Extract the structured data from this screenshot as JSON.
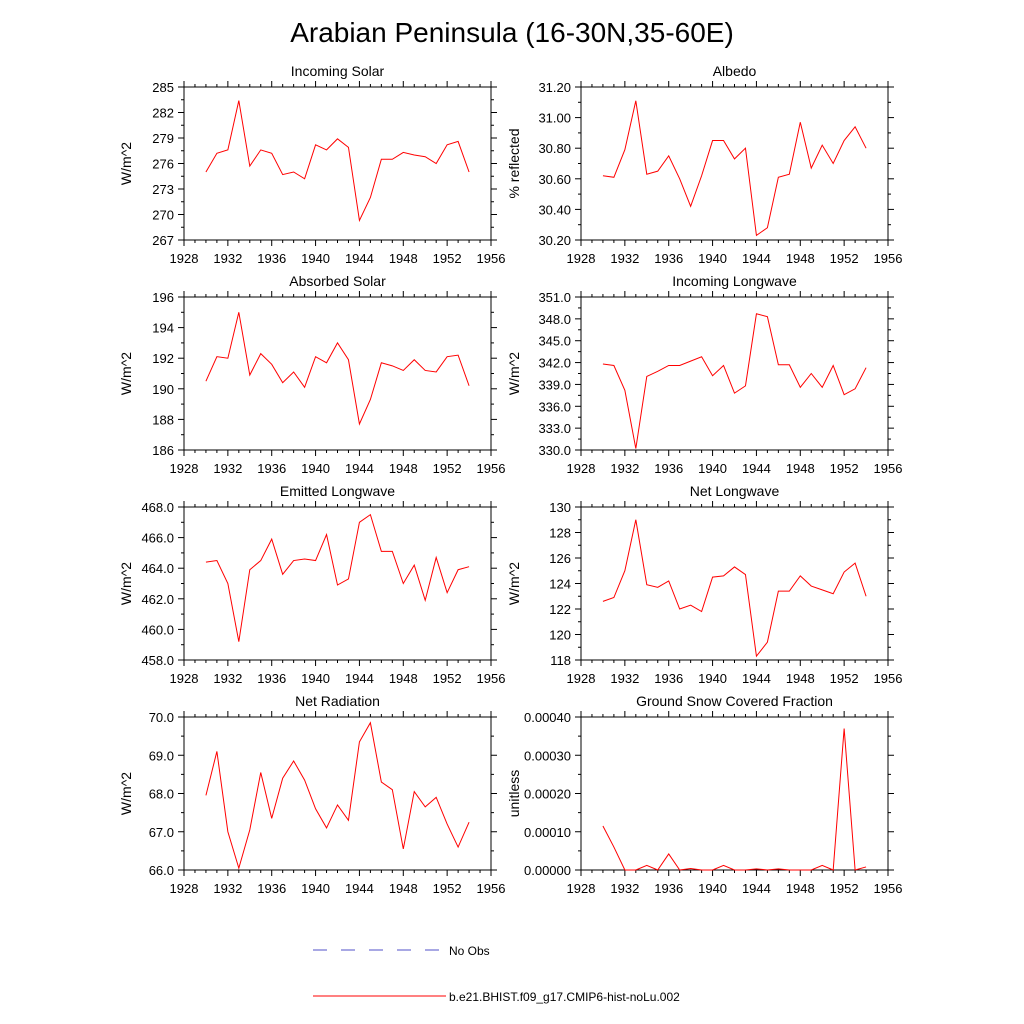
{
  "figure_title": "Arabian Peninsula (16-30N,35-60E)",
  "legend": [
    {
      "label": "No Obs",
      "color": "#5050c8",
      "style": "dashed"
    },
    {
      "label": "b.e21.BHIST.f09_g17.CMIP6-hist-noLu.002",
      "color": "#ff0000",
      "style": "solid"
    }
  ],
  "chart_data": [
    {
      "type": "line",
      "title": "Incoming Solar",
      "ylabel": "W/m^2",
      "xlim": [
        1928,
        1956
      ],
      "xticks": [
        1928,
        1932,
        1936,
        1940,
        1944,
        1948,
        1952,
        1956
      ],
      "ylim": [
        267,
        285
      ],
      "yticks": [
        267,
        270,
        273,
        276,
        279,
        282,
        285
      ],
      "ytick_labels": [
        "267",
        "270",
        "273",
        "276",
        "279",
        "282",
        "285"
      ],
      "series": [
        {
          "name": "b.e21.BHIST.f09_g17.CMIP6-hist-noLu.002",
          "color": "#ff0000",
          "x": [
            1930,
            1931,
            1932,
            1933,
            1934,
            1935,
            1936,
            1937,
            1938,
            1939,
            1940,
            1941,
            1942,
            1943,
            1944,
            1945,
            1946,
            1947,
            1948,
            1949,
            1950,
            1951,
            1952,
            1953,
            1954
          ],
          "y": [
            275.0,
            277.2,
            277.6,
            283.4,
            275.7,
            277.6,
            277.2,
            274.7,
            275.0,
            274.2,
            278.2,
            277.6,
            278.9,
            277.9,
            269.3,
            272.0,
            276.5,
            276.5,
            277.3,
            277.0,
            276.8,
            276.0,
            278.2,
            278.6,
            275.0
          ]
        }
      ]
    },
    {
      "type": "line",
      "title": "Albedo",
      "ylabel": "% reflected",
      "xlim": [
        1928,
        1956
      ],
      "xticks": [
        1928,
        1932,
        1936,
        1940,
        1944,
        1948,
        1952,
        1956
      ],
      "ylim": [
        30.2,
        31.2
      ],
      "yticks": [
        30.2,
        30.4,
        30.6,
        30.8,
        31.0,
        31.2
      ],
      "ytick_labels": [
        "30.20",
        "30.40",
        "30.60",
        "30.80",
        "31.00",
        "31.20"
      ],
      "series": [
        {
          "name": "b.e21.BHIST.f09_g17.CMIP6-hist-noLu.002",
          "color": "#ff0000",
          "x": [
            1930,
            1931,
            1932,
            1933,
            1934,
            1935,
            1936,
            1937,
            1938,
            1939,
            1940,
            1941,
            1942,
            1943,
            1944,
            1945,
            1946,
            1947,
            1948,
            1949,
            1950,
            1951,
            1952,
            1953,
            1954
          ],
          "y": [
            30.62,
            30.61,
            30.79,
            31.11,
            30.63,
            30.65,
            30.75,
            30.6,
            30.42,
            30.62,
            30.85,
            30.85,
            30.73,
            30.8,
            30.23,
            30.28,
            30.61,
            30.63,
            30.97,
            30.67,
            30.82,
            30.7,
            30.85,
            30.94,
            30.8
          ]
        }
      ]
    },
    {
      "type": "line",
      "title": "Absorbed Solar",
      "ylabel": "W/m^2",
      "xlim": [
        1928,
        1956
      ],
      "xticks": [
        1928,
        1932,
        1936,
        1940,
        1944,
        1948,
        1952,
        1956
      ],
      "ylim": [
        186,
        196
      ],
      "yticks": [
        186,
        188,
        190,
        192,
        194,
        196
      ],
      "ytick_labels": [
        "186",
        "188",
        "190",
        "192",
        "194",
        "196"
      ],
      "series": [
        {
          "name": "b.e21.BHIST.f09_g17.CMIP6-hist-noLu.002",
          "color": "#ff0000",
          "x": [
            1930,
            1931,
            1932,
            1933,
            1934,
            1935,
            1936,
            1937,
            1938,
            1939,
            1940,
            1941,
            1942,
            1943,
            1944,
            1945,
            1946,
            1947,
            1948,
            1949,
            1950,
            1951,
            1952,
            1953,
            1954
          ],
          "y": [
            190.5,
            192.1,
            192.0,
            195.0,
            190.9,
            192.3,
            191.6,
            190.4,
            191.1,
            190.1,
            192.1,
            191.7,
            193.0,
            191.9,
            187.7,
            189.3,
            191.7,
            191.5,
            191.2,
            191.9,
            191.2,
            191.1,
            192.1,
            192.2,
            190.2
          ]
        }
      ]
    },
    {
      "type": "line",
      "title": "Incoming Longwave",
      "ylabel": "W/m^2",
      "xlim": [
        1928,
        1956
      ],
      "xticks": [
        1928,
        1932,
        1936,
        1940,
        1944,
        1948,
        1952,
        1956
      ],
      "ylim": [
        330,
        351
      ],
      "yticks": [
        330,
        333,
        336,
        339,
        342,
        345,
        348,
        351
      ],
      "ytick_labels": [
        "330.0",
        "333.0",
        "336.0",
        "339.0",
        "342.0",
        "345.0",
        "348.0",
        "351.0"
      ],
      "series": [
        {
          "name": "b.e21.BHIST.f09_g17.CMIP6-hist-noLu.002",
          "color": "#ff0000",
          "x": [
            1930,
            1931,
            1932,
            1933,
            1934,
            1935,
            1936,
            1937,
            1938,
            1939,
            1940,
            1941,
            1942,
            1943,
            1944,
            1945,
            1946,
            1947,
            1948,
            1949,
            1950,
            1951,
            1952,
            1953,
            1954
          ],
          "y": [
            341.8,
            341.6,
            338.2,
            330.2,
            340.1,
            340.8,
            341.6,
            341.6,
            342.2,
            342.8,
            340.2,
            341.6,
            337.8,
            338.8,
            348.7,
            348.3,
            341.7,
            341.7,
            338.6,
            340.5,
            338.6,
            341.6,
            337.6,
            338.4,
            341.3
          ]
        }
      ]
    },
    {
      "type": "line",
      "title": "Emitted Longwave",
      "ylabel": "W/m^2",
      "xlim": [
        1928,
        1956
      ],
      "xticks": [
        1928,
        1932,
        1936,
        1940,
        1944,
        1948,
        1952,
        1956
      ],
      "ylim": [
        458,
        468
      ],
      "yticks": [
        458,
        460,
        462,
        464,
        466,
        468
      ],
      "ytick_labels": [
        "458.0",
        "460.0",
        "462.0",
        "464.0",
        "466.0",
        "468.0"
      ],
      "series": [
        {
          "name": "b.e21.BHIST.f09_g17.CMIP6-hist-noLu.002",
          "color": "#ff0000",
          "x": [
            1930,
            1931,
            1932,
            1933,
            1934,
            1935,
            1936,
            1937,
            1938,
            1939,
            1940,
            1941,
            1942,
            1943,
            1944,
            1945,
            1946,
            1947,
            1948,
            1949,
            1950,
            1951,
            1952,
            1953,
            1954
          ],
          "y": [
            464.4,
            464.5,
            463.0,
            459.2,
            463.9,
            464.5,
            465.9,
            463.6,
            464.5,
            464.6,
            464.5,
            466.2,
            462.9,
            463.3,
            467.0,
            467.5,
            465.1,
            465.1,
            463.0,
            464.2,
            461.9,
            464.7,
            462.4,
            463.9,
            464.1
          ]
        }
      ]
    },
    {
      "type": "line",
      "title": "Net Longwave",
      "ylabel": "W/m^2",
      "xlim": [
        1928,
        1956
      ],
      "xticks": [
        1928,
        1932,
        1936,
        1940,
        1944,
        1948,
        1952,
        1956
      ],
      "ylim": [
        118,
        130
      ],
      "yticks": [
        118,
        120,
        122,
        124,
        126,
        128,
        130
      ],
      "ytick_labels": [
        "118",
        "120",
        "122",
        "124",
        "126",
        "128",
        "130"
      ],
      "series": [
        {
          "name": "b.e21.BHIST.f09_g17.CMIP6-hist-noLu.002",
          "color": "#ff0000",
          "x": [
            1930,
            1931,
            1932,
            1933,
            1934,
            1935,
            1936,
            1937,
            1938,
            1939,
            1940,
            1941,
            1942,
            1943,
            1944,
            1945,
            1946,
            1947,
            1948,
            1949,
            1950,
            1951,
            1952,
            1953,
            1954
          ],
          "y": [
            122.6,
            122.9,
            125.0,
            129.0,
            123.9,
            123.7,
            124.2,
            122.0,
            122.3,
            121.8,
            124.5,
            124.6,
            125.3,
            124.7,
            118.3,
            119.4,
            123.4,
            123.4,
            124.6,
            123.8,
            123.5,
            123.2,
            124.9,
            125.6,
            123.0
          ]
        }
      ]
    },
    {
      "type": "line",
      "title": "Net Radiation",
      "ylabel": "W/m^2",
      "xlim": [
        1928,
        1956
      ],
      "xticks": [
        1928,
        1932,
        1936,
        1940,
        1944,
        1948,
        1952,
        1956
      ],
      "ylim": [
        66,
        70
      ],
      "yticks": [
        66,
        67,
        68,
        69,
        70
      ],
      "ytick_labels": [
        "66.0",
        "67.0",
        "68.0",
        "69.0",
        "70.0"
      ],
      "series": [
        {
          "name": "b.e21.BHIST.f09_g17.CMIP6-hist-noLu.002",
          "color": "#ff0000",
          "x": [
            1930,
            1931,
            1932,
            1933,
            1934,
            1935,
            1936,
            1937,
            1938,
            1939,
            1940,
            1941,
            1942,
            1943,
            1944,
            1945,
            1946,
            1947,
            1948,
            1949,
            1950,
            1951,
            1952,
            1953,
            1954
          ],
          "y": [
            67.95,
            69.1,
            67.0,
            66.05,
            67.05,
            68.55,
            67.35,
            68.4,
            68.85,
            68.35,
            67.6,
            67.1,
            67.7,
            67.3,
            69.35,
            69.85,
            68.3,
            68.1,
            66.55,
            68.05,
            67.65,
            67.9,
            67.2,
            66.6,
            67.25
          ]
        }
      ]
    },
    {
      "type": "line",
      "title": "Ground Snow Covered Fraction",
      "ylabel": "unitless",
      "xlim": [
        1928,
        1956
      ],
      "xticks": [
        1928,
        1932,
        1936,
        1940,
        1944,
        1948,
        1952,
        1956
      ],
      "ylim": [
        0,
        0.0004
      ],
      "yticks": [
        0,
        0.0001,
        0.0002,
        0.0003,
        0.0004
      ],
      "ytick_labels": [
        "0.00000",
        "0.00010",
        "0.00020",
        "0.00030",
        "0.00040"
      ],
      "series": [
        {
          "name": "b.e21.BHIST.f09_g17.CMIP6-hist-noLu.002",
          "color": "#ff0000",
          "x": [
            1930,
            1931,
            1932,
            1933,
            1934,
            1935,
            1936,
            1937,
            1938,
            1939,
            1940,
            1941,
            1942,
            1943,
            1944,
            1945,
            1946,
            1947,
            1948,
            1949,
            1950,
            1951,
            1952,
            1953,
            1954
          ],
          "y": [
            0.000115,
            6e-05,
            0.0,
            0.0,
            1.2e-05,
            0.0,
            4.2e-05,
            0.0,
            4e-06,
            0.0,
            0.0,
            1.2e-05,
            0.0,
            0.0,
            3e-06,
            0.0,
            3e-06,
            0.0,
            0.0,
            0.0,
            1.2e-05,
            0.0,
            0.00037,
            0.0,
            8e-06
          ]
        }
      ]
    }
  ]
}
